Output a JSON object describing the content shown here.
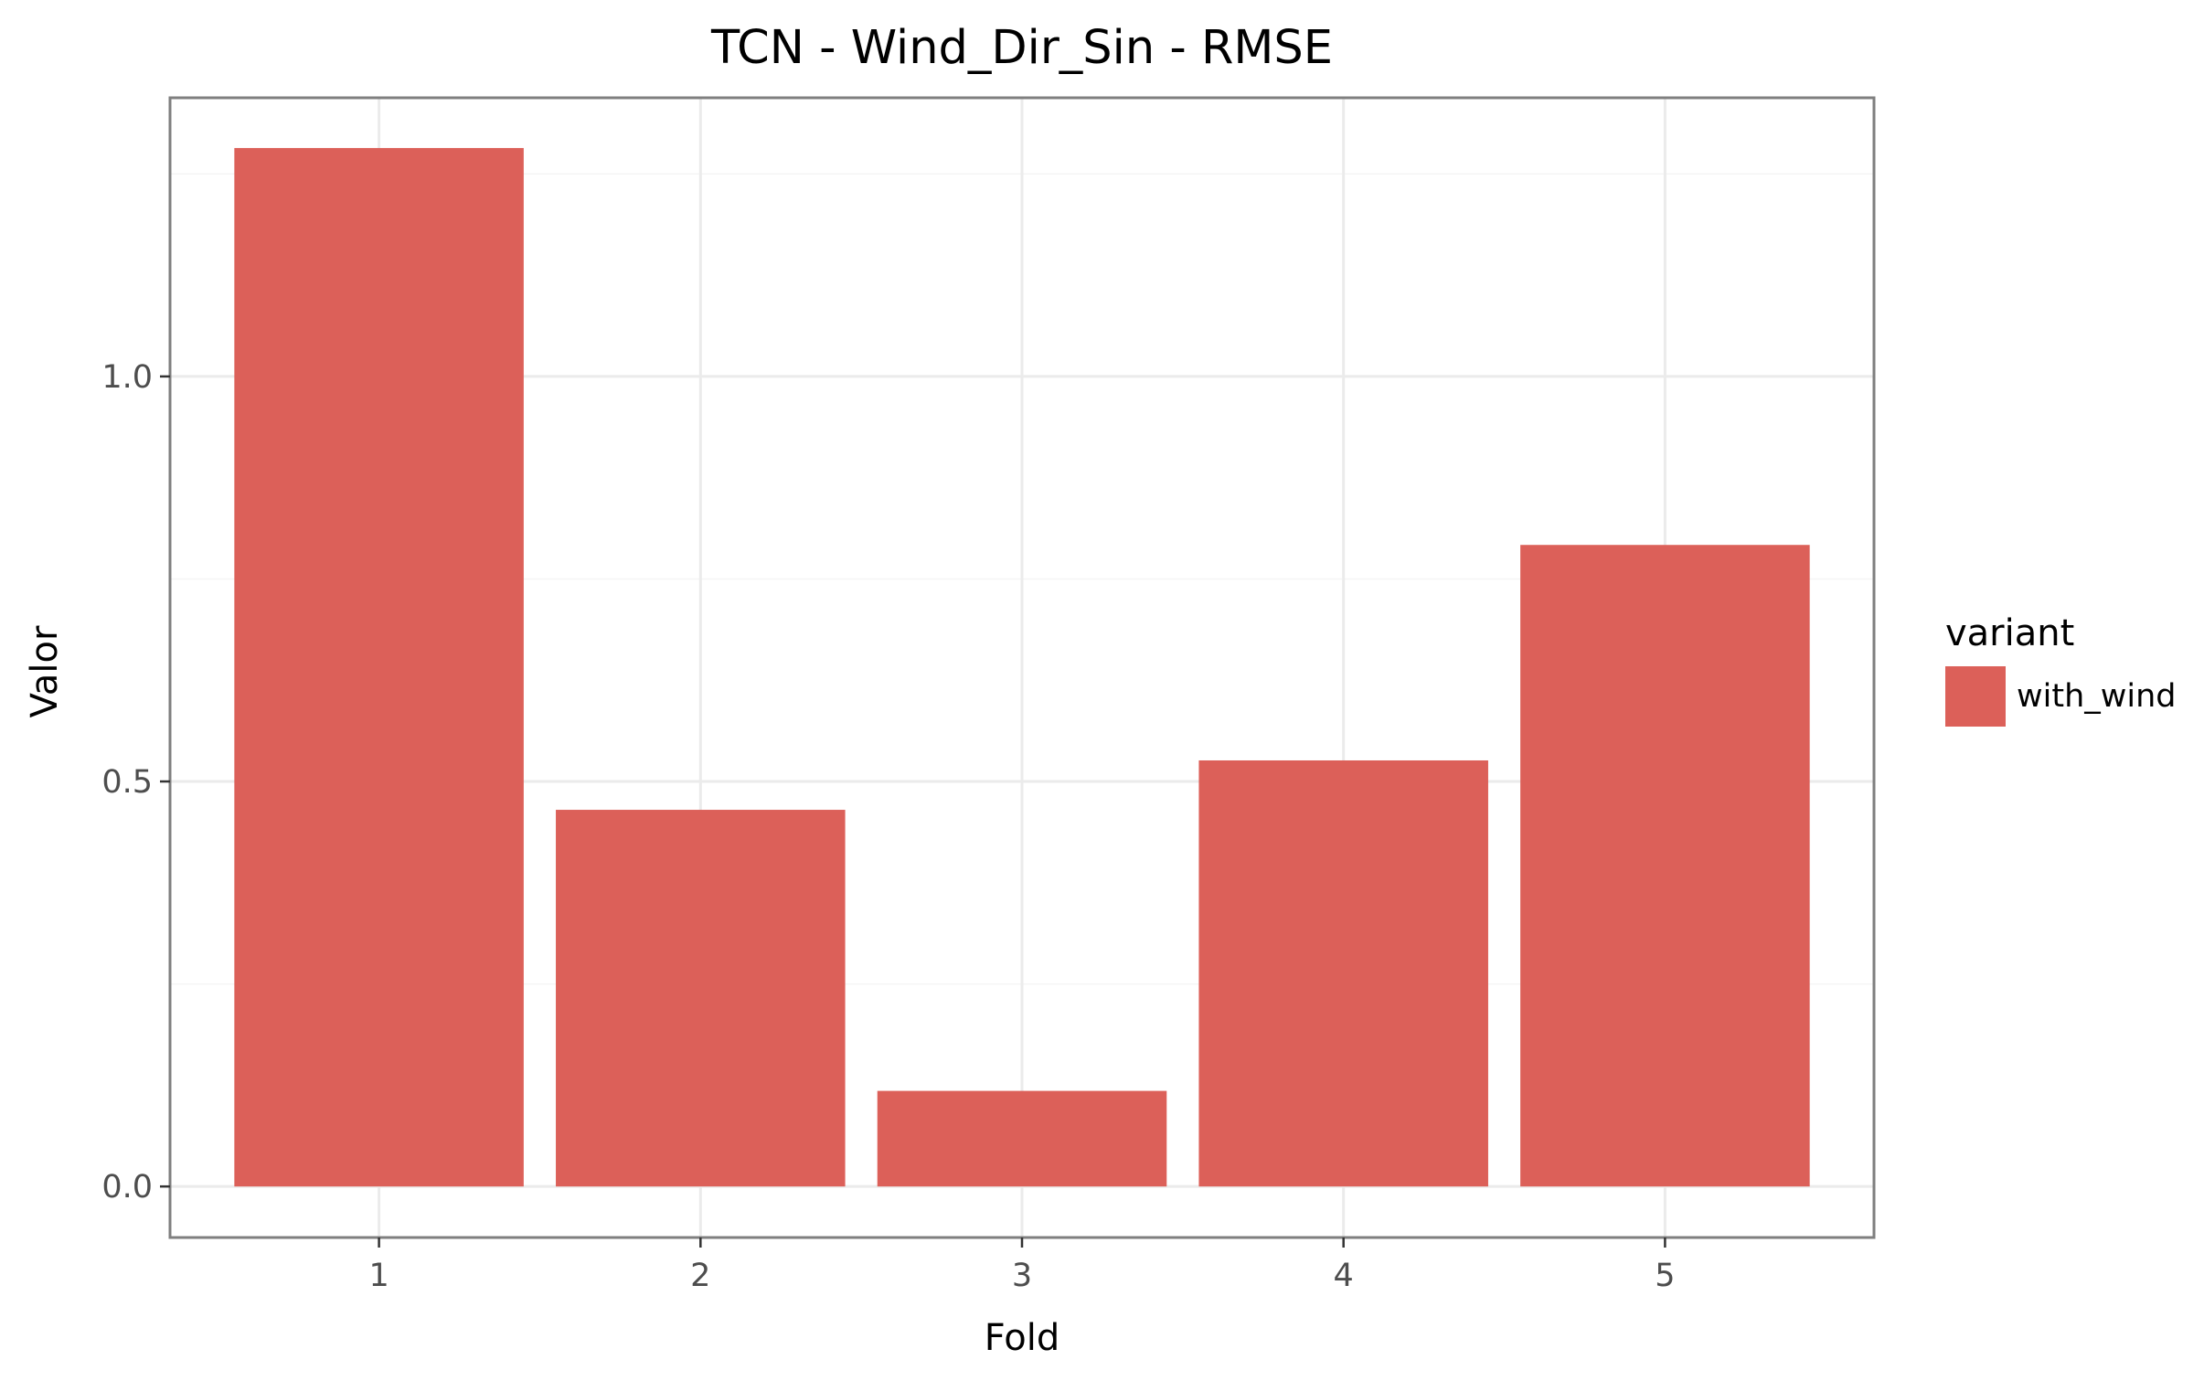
{
  "chart_data": {
    "type": "bar",
    "title": "TCN - Wind_Dir_Sin - RMSE",
    "xlabel": "Fold",
    "ylabel": "Valor",
    "categories": [
      "1",
      "2",
      "3",
      "4",
      "5"
    ],
    "series": [
      {
        "name": "with_wind",
        "values": [
          1.282,
          0.465,
          0.118,
          0.526,
          0.792
        ],
        "color": "#dc6059"
      }
    ],
    "ylim": [
      -0.063,
      1.344
    ],
    "y_ticks": [
      {
        "value": 0.0,
        "label": "0.0"
      },
      {
        "value": 0.5,
        "label": "0.5"
      },
      {
        "value": 1.0,
        "label": "1.0"
      }
    ],
    "y_minor_ticks": [
      0.25,
      0.75,
      1.25
    ],
    "grid": true,
    "legend": {
      "title": "variant",
      "position": "right",
      "items": [
        {
          "label": "with_wind",
          "color": "#dc6059"
        }
      ]
    },
    "colors": {
      "panel_border": "#7f7f7f",
      "grid": "#ebebeb",
      "background": "#ffffff"
    }
  }
}
